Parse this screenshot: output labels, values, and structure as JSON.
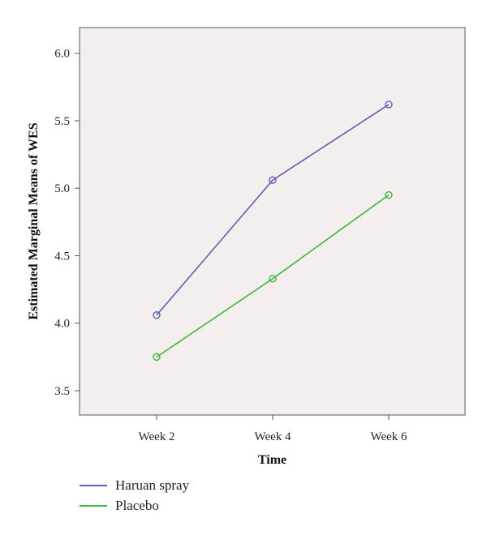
{
  "chart_data": {
    "type": "line",
    "categories": [
      "Week 2",
      "Week 4",
      "Week 6"
    ],
    "series": [
      {
        "name": "Haruan spray",
        "color": "#5b5fb0",
        "values": [
          4.06,
          5.06,
          5.62
        ]
      },
      {
        "name": "Placebo",
        "color": "#3cb83c",
        "values": [
          3.75,
          4.33,
          4.95
        ]
      }
    ],
    "xlabel": "Time",
    "ylabel": "Estimated Marginal Means of WES",
    "ylim": [
      3.32,
      6.19
    ],
    "yticks": [
      "3.5",
      "4.0",
      "4.5",
      "5.0",
      "5.5",
      "6.0"
    ],
    "grid": false,
    "legend_position": "bottom-left",
    "plot_background": "#f4eeee",
    "marker": "open-circle"
  }
}
